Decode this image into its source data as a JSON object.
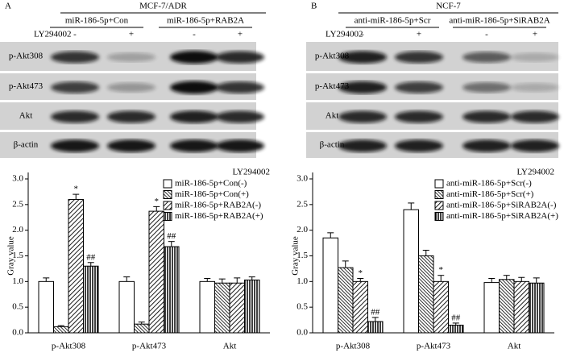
{
  "blots": [
    {
      "letter": "A",
      "title": "MCF-7/ADR",
      "groups": [
        "miR-186-5p+Con",
        "miR-186-5p+RAB2A"
      ],
      "treatment": "LY294002",
      "lanes": [
        "-",
        "+",
        "-",
        "+"
      ],
      "rows": [
        "p-Akt308",
        "p-Akt473",
        "Akt",
        "β-actin"
      ]
    },
    {
      "letter": "B",
      "title": "NCF-7",
      "groups": [
        "anti-miR-186-5p+Scr",
        "anti-miR-186-5p+SiRAB2A"
      ],
      "treatment": "LY294002",
      "lanes": [
        "-",
        "+",
        "-",
        "+"
      ],
      "rows": [
        "p-Akt308",
        "p-Akt473",
        "Akt",
        "β-actin"
      ]
    }
  ],
  "chart_data": [
    {
      "type": "bar",
      "y_label": "Gray value",
      "legend_title": "LY294002",
      "legend": "upper right",
      "categories": [
        "p-Akt308",
        "p-Akt473",
        "Akt"
      ],
      "ylim": [
        0,
        3.0
      ],
      "yticks": [
        {
          "value": 0,
          "label": "0.0"
        },
        0.5,
        {
          "value": 1,
          "label": "1.0"
        },
        1.5,
        {
          "value": 2,
          "label": "2.0"
        },
        2.5,
        {
          "value": 3,
          "label": "3.0"
        }
      ],
      "series": [
        {
          "name": "miR-186-5p+Con(-)",
          "color": "#000000",
          "hatch": "none",
          "values": [
            1.0,
            1.0,
            1.0
          ],
          "errors": [
            0.07,
            0.09,
            0.06
          ],
          "annotations": [
            null,
            null,
            null
          ]
        },
        {
          "name": "miR-186-5p+Con(+)",
          "color": "#000000",
          "hatch": "back-diagonal",
          "values": [
            0.12,
            0.17,
            0.97
          ],
          "errors": [
            0.02,
            0.04,
            0.08
          ],
          "annotations": [
            null,
            null,
            null
          ]
        },
        {
          "name": "miR-186-5p+RAB2A(-)",
          "color": "#000000",
          "hatch": "diagonal",
          "values": [
            2.6,
            2.37,
            0.97
          ],
          "errors": [
            0.1,
            0.09,
            0.1
          ],
          "annotations": [
            "*",
            "*",
            null
          ]
        },
        {
          "name": "miR-186-5p+RAB2A(+)",
          "color": "#000000",
          "hatch": "vertical",
          "values": [
            1.3,
            1.68,
            1.03
          ],
          "errors": [
            0.07,
            0.1,
            0.06
          ],
          "annotations": [
            "##",
            "##",
            null
          ]
        }
      ]
    },
    {
      "type": "bar",
      "y_label": "Gray value",
      "legend_title": "LY294002",
      "legend": "upper right",
      "categories": [
        "p-Akt308",
        "p-Akt473",
        "Akt"
      ],
      "ylim": [
        0,
        3.0
      ],
      "yticks": [
        {
          "value": 0,
          "label": "0.0"
        },
        0.5,
        {
          "value": 1,
          "label": "1.0"
        },
        1.5,
        {
          "value": 2,
          "label": "2.0"
        },
        2.5,
        {
          "value": 3,
          "label": "3.0"
        }
      ],
      "series": [
        {
          "name": "anti-miR-186-5p+Scr(-)",
          "color": "#000000",
          "hatch": "none",
          "values": [
            1.85,
            2.4,
            0.98
          ],
          "errors": [
            0.1,
            0.13,
            0.08
          ],
          "annotations": [
            null,
            null,
            null
          ]
        },
        {
          "name": "anti-miR-186-5p+Scr(+)",
          "color": "#000000",
          "hatch": "back-diagonal",
          "values": [
            1.27,
            1.5,
            1.04
          ],
          "errors": [
            0.13,
            0.11,
            0.08
          ],
          "annotations": [
            null,
            null,
            null
          ]
        },
        {
          "name": "anti-miR-186-5p+SiRAB2A(-)",
          "color": "#000000",
          "hatch": "diagonal",
          "values": [
            1.0,
            1.0,
            1.0
          ],
          "errors": [
            0.06,
            0.12,
            0.08
          ],
          "annotations": [
            "*",
            "*",
            null
          ]
        },
        {
          "name": "anti-miR-186-5p+SiRAB2A(+)",
          "color": "#000000",
          "hatch": "vertical",
          "values": [
            0.22,
            0.15,
            0.97
          ],
          "errors": [
            0.08,
            0.04,
            0.1
          ],
          "annotations": [
            "##",
            "##",
            null
          ]
        }
      ]
    }
  ]
}
